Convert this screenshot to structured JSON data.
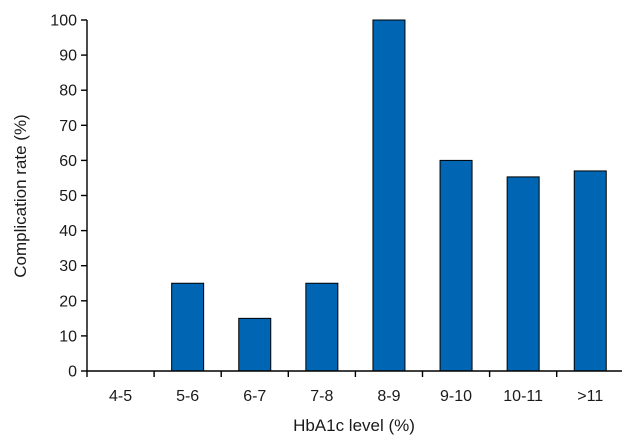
{
  "chart_data": {
    "type": "bar",
    "categories": [
      "4-5",
      "5-6",
      "6-7",
      "7-8",
      "8-9",
      "9-10",
      "10-11",
      ">11"
    ],
    "values": [
      0,
      25,
      15,
      25,
      100,
      60,
      55.3,
      57
    ],
    "xlabel": "HbA1c level (%)",
    "ylabel": "Complication rate (%)",
    "ylim": [
      0,
      100
    ],
    "yticks": [
      0,
      10,
      20,
      30,
      40,
      50,
      60,
      70,
      80,
      90,
      100
    ],
    "grid": false,
    "bar_color": "#0066b3"
  }
}
